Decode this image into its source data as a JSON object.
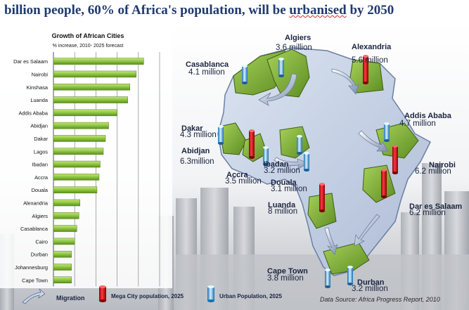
{
  "header": {
    "title_main": "billion people, 60% of Africa's population, will be ",
    "title_flagged": "urbanised",
    "title_end": " by 2050"
  },
  "colors": {
    "bar_fill": "#8cc63f",
    "bar_dark": "#4f7f1a",
    "map_green": "#7fb33a",
    "map_blue": "#c9d5e8",
    "title": "#1f3a6e",
    "mega_city": "#d0101a",
    "urban": "#4aa8e0"
  },
  "chart_data": {
    "type": "bar",
    "orientation": "horizontal",
    "title": "Growth of African Cities",
    "subtitle": "% increase, 2010- 2025 forecast",
    "categories": [
      "Dar es Salaam",
      "Nairobi",
      "Kinshasa",
      "Luanda",
      "Addis Ababa",
      "Abidjan",
      "Dakar",
      "Lagos",
      "Ibadan",
      "Accra",
      "Douala",
      "Alexandria",
      "Algiers",
      "Casablanca",
      "Cairo",
      "Durban",
      "Johannesburg",
      "Cape Town"
    ],
    "values": [
      85,
      78,
      72,
      70,
      60,
      52,
      49,
      47,
      44,
      43,
      41,
      25,
      24,
      22,
      20,
      17,
      17,
      17
    ],
    "xlim": [
      0,
      100
    ],
    "xticks": [
      "0",
      "20",
      "40",
      "60",
      "80",
      "100"
    ],
    "grid": true
  },
  "map": {
    "cities": [
      {
        "name": "Algiers",
        "value": "3.6 million",
        "type": "urban"
      },
      {
        "name": "Alexandria",
        "value": "5.6 million",
        "type": "mega"
      },
      {
        "name": "Casablanca",
        "value": "4.1 million",
        "type": "urban"
      },
      {
        "name": "Dakar",
        "value": "4.3 million",
        "type": "urban"
      },
      {
        "name": "Abidjan",
        "value": "6.3million",
        "type": "mega"
      },
      {
        "name": "Accra",
        "value": "3.5 million",
        "type": "urban"
      },
      {
        "name": "Ibadan",
        "value": "3.2 million",
        "type": "urban"
      },
      {
        "name": "Douala",
        "value": "3.1 million",
        "type": "urban"
      },
      {
        "name": "Luanda",
        "value": "8 million",
        "type": "mega"
      },
      {
        "name": "Addis Ababa",
        "value": "4.7 million",
        "type": "urban"
      },
      {
        "name": "Nairobi",
        "value": "6.2 million",
        "type": "mega"
      },
      {
        "name": "Dar es Salaam",
        "value": "6.2 million",
        "type": "mega"
      },
      {
        "name": "Cape Town",
        "value": "3.8 million",
        "type": "urban"
      },
      {
        "name": "Durban",
        "value": "3.2 million",
        "type": "urban"
      }
    ]
  },
  "legend": {
    "migration": "Migration",
    "mega": "Mega City population, 2025",
    "urban": "Urban Population, 2025"
  },
  "source": "Data Source: Africa Progress Report, 2010"
}
